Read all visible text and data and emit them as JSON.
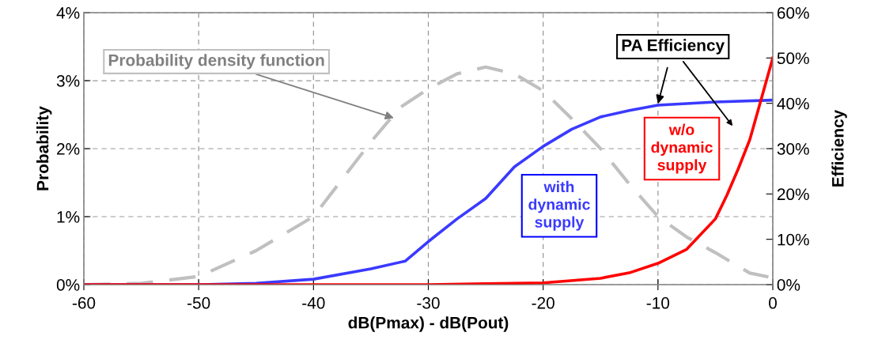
{
  "chart_data": {
    "type": "line",
    "xlabel": "dB(Pmax) - dB(Pout)",
    "ylabel": "Probability",
    "y2label": "Efficiency",
    "xlim": [
      -60,
      0
    ],
    "xticks": [
      {
        "value": -60,
        "label": "-60"
      },
      {
        "value": -50,
        "label": "-50"
      },
      {
        "value": -40,
        "label": "-40"
      },
      {
        "value": -30,
        "label": "-30"
      },
      {
        "value": -20,
        "label": "-20"
      },
      {
        "value": -10,
        "label": "-10"
      },
      0
    ],
    "ylim": [
      0,
      4
    ],
    "yticks": [
      {
        "value": 0,
        "label": "0%"
      },
      {
        "value": 1,
        "label": "1%"
      },
      {
        "value": 2,
        "label": "2%"
      },
      {
        "value": 3,
        "label": "3%"
      },
      {
        "value": 4,
        "label": "4%"
      }
    ],
    "y2lim": [
      0,
      60
    ],
    "y2ticks": [
      {
        "value": 0,
        "label": "0%"
      },
      {
        "value": 10,
        "label": "10%"
      },
      {
        "value": 20,
        "label": "20%"
      },
      {
        "value": 30,
        "label": "30%"
      },
      {
        "value": 40,
        "label": "40%"
      },
      {
        "value": 50,
        "label": "50%"
      },
      {
        "value": 60,
        "label": "60%"
      }
    ],
    "grid": true,
    "legend": false,
    "series": [
      {
        "color": "#c0c0c0",
        "line_style": "dashed",
        "x": [
          -60,
          -55,
          -50,
          -45,
          -40,
          -37.5,
          -35,
          -32.5,
          -30,
          -27.5,
          -25,
          -22.5,
          -20,
          -17.5,
          -15,
          -12.5,
          -10,
          -7.5,
          -5,
          -2,
          0
        ],
        "values": [
          0,
          0.02,
          0.12,
          0.5,
          1.0,
          1.55,
          2.1,
          2.6,
          2.88,
          3.1,
          3.2,
          3.1,
          2.85,
          2.44,
          2.0,
          1.48,
          1.0,
          0.7,
          0.47,
          0.17,
          0.1
        ]
      },
      {
        "color": "#3a3aff",
        "axis": "y2",
        "line_style": "solid",
        "x": [
          -60,
          -55,
          -50,
          -45,
          -40,
          -35,
          -32,
          -30,
          -27.5,
          -25,
          -22.5,
          -20,
          -17.5,
          -15,
          -12.5,
          -10,
          -5,
          0
        ],
        "values": [
          0,
          0,
          0,
          0.3,
          1.2,
          3.5,
          5.2,
          9.5,
          14.5,
          19,
          26,
          30.5,
          34.3,
          37,
          38.4,
          39.6,
          40.3,
          40.7
        ]
      },
      {
        "color": "#ff0000",
        "axis": "y2",
        "line_style": "solid",
        "x": [
          -60,
          -30,
          -25,
          -20,
          -15,
          -12.5,
          -10,
          -7.5,
          -5,
          -4,
          -3,
          -2,
          -1,
          0
        ],
        "values": [
          0,
          0,
          0.2,
          0.4,
          1.4,
          2.6,
          4.7,
          7.8,
          14.5,
          19.7,
          25.6,
          32,
          41,
          50
        ]
      }
    ],
    "annotations": [
      {
        "text": "Probability density function",
        "x": -33,
        "y": 2.45
      },
      {
        "text": "PA Efficiency",
        "x": -10,
        "y": 2.66
      },
      "with\ndynamic\nsupply",
      "w/o\ndynamic\nsupply"
    ]
  }
}
